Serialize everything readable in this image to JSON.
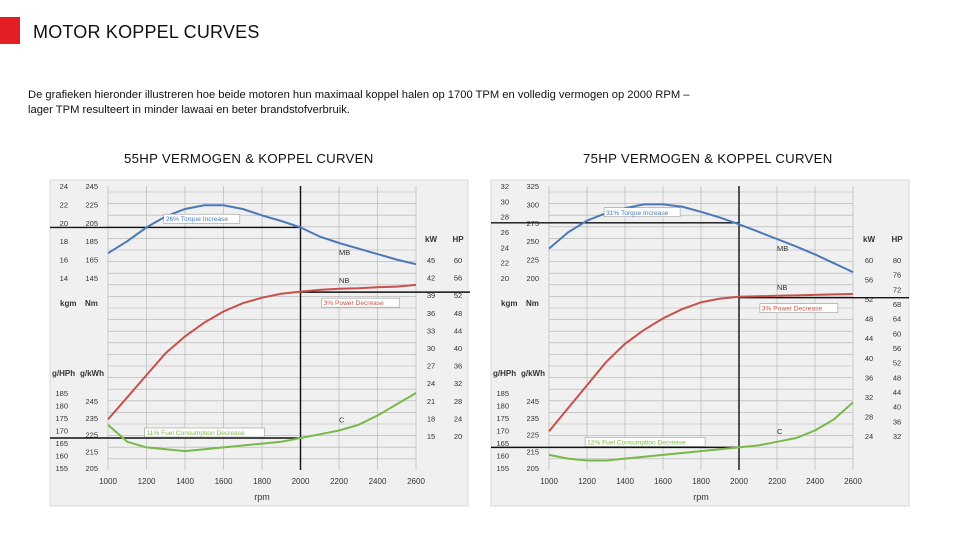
{
  "slide": {
    "title": "MOTOR KOPPEL CURVES",
    "intro_line1": "De grafieken hieronder illustreren hoe beide motoren hun maximaal koppel halen op 1700 TPM en volledig vermogen op 2000 RPM –",
    "intro_line2": "lager TPM resulteert in minder lawaai en beter brandstofverbruik.",
    "accent_color": "#e31e24"
  },
  "colors": {
    "torque": "#4a78b8",
    "power": "#c8504a",
    "fuel": "#7ab84a",
    "panel": "#f0f0f0",
    "grid": "#b0b0b0"
  },
  "chart_data": [
    {
      "type": "line",
      "title": "55HP VERMOGEN & KOPPEL CURVEN",
      "xlabel": "rpm",
      "x_ticks": [
        1000,
        1200,
        1400,
        1600,
        1800,
        2000,
        2200,
        2400,
        2600
      ],
      "xlim": [
        1000,
        2600
      ],
      "marker_rpm": 2000,
      "torque_axis": {
        "labels": [
          "kgm",
          "Nm"
        ],
        "kgm_ticks": [
          "24",
          "22",
          "20",
          "18",
          "16",
          "14"
        ],
        "nm_ticks": [
          "245",
          "225",
          "205",
          "185",
          "165",
          "145"
        ],
        "nm_range": [
          145,
          245
        ]
      },
      "power_axis": {
        "labels": [
          "kW",
          "HP"
        ],
        "kw_ticks": [
          "45",
          "42",
          "39",
          "36",
          "33",
          "30",
          "27",
          "24",
          "21",
          "18",
          "15"
        ],
        "hp_ticks": [
          "60",
          "56",
          "52",
          "48",
          "44",
          "40",
          "36",
          "32",
          "28",
          "24",
          "20"
        ],
        "kw_range": [
          15,
          45
        ]
      },
      "fuel_axis": {
        "labels": [
          "g/HPh",
          "g/kWh"
        ],
        "ghph_ticks": [
          "185",
          "180",
          "175",
          "170",
          "165",
          "160",
          "155"
        ],
        "gkwh_ticks": [
          "245",
          "235",
          "225",
          "215",
          "205"
        ],
        "gkwh_range": [
          205,
          245
        ]
      },
      "series": [
        {
          "name": "MB",
          "key": "torque",
          "x": [
            1000,
            1100,
            1200,
            1300,
            1400,
            1500,
            1600,
            1700,
            1800,
            1900,
            2000,
            2100,
            2200,
            2300,
            2400,
            2500,
            2600
          ],
          "values": [
            172,
            185,
            200,
            212,
            220,
            224,
            224,
            220,
            213,
            207,
            200,
            190,
            183,
            177,
            171,
            165,
            160
          ]
        },
        {
          "name": "NB",
          "key": "power",
          "x": [
            1000,
            1100,
            1200,
            1300,
            1400,
            1500,
            1600,
            1700,
            1800,
            1900,
            2000,
            2100,
            2200,
            2300,
            2400,
            2500,
            2600
          ],
          "values": [
            18,
            22,
            26,
            30,
            33,
            35.5,
            37.5,
            39,
            40,
            40.7,
            41.1,
            41.4,
            41.6,
            41.7,
            41.9,
            42,
            42.3
          ]
        },
        {
          "name": "C",
          "key": "fuel",
          "x": [
            1000,
            1100,
            1200,
            1300,
            1400,
            1500,
            1600,
            1700,
            1800,
            1900,
            2000,
            2100,
            2200,
            2300,
            2400,
            2500,
            2600
          ],
          "values": [
            228,
            219,
            216,
            215,
            214,
            215,
            216,
            217,
            218,
            219,
            221,
            223,
            225,
            228,
            233,
            239,
            245
          ]
        }
      ],
      "reference_lines": {
        "torque": 200,
        "power": 41,
        "fuel": 221
      },
      "annotations": [
        "26% Torque Increase",
        "3% Power Decrease",
        "11% Fuel Consumption Decrease"
      ]
    },
    {
      "type": "line",
      "title": "75HP VERMOGEN & KOPPEL CURVEN",
      "xlabel": "rpm",
      "x_ticks": [
        1000,
        1200,
        1400,
        1600,
        1800,
        2000,
        2200,
        2400,
        2600
      ],
      "xlim": [
        1000,
        2600
      ],
      "marker_rpm": 2000,
      "torque_axis": {
        "labels": [
          "kgm",
          "Nm"
        ],
        "kgm_ticks": [
          "32",
          "30",
          "28",
          "26",
          "24",
          "22",
          "20"
        ],
        "nm_ticks": [
          "325",
          "300",
          "275",
          "250",
          "225",
          "200"
        ],
        "nm_range": [
          200,
          325
        ]
      },
      "power_axis": {
        "labels": [
          "kW",
          "HP"
        ],
        "kw_ticks": [
          "60",
          "56",
          "52",
          "48",
          "44",
          "40",
          "36",
          "32",
          "28",
          "24"
        ],
        "hp_ticks": [
          "80",
          "76",
          "72",
          "68",
          "64",
          "60",
          "56",
          "52",
          "48",
          "44",
          "40",
          "36",
          "32"
        ],
        "kw_range": [
          24,
          60
        ]
      },
      "fuel_axis": {
        "labels": [
          "g/HPh",
          "g/kWh"
        ],
        "ghph_ticks": [
          "185",
          "180",
          "175",
          "170",
          "165",
          "160",
          "155"
        ],
        "gkwh_ticks": [
          "245",
          "235",
          "225",
          "215",
          "205"
        ],
        "gkwh_range": [
          205,
          245
        ]
      },
      "series": [
        {
          "name": "MB",
          "key": "torque",
          "x": [
            1000,
            1100,
            1200,
            1300,
            1400,
            1500,
            1600,
            1700,
            1800,
            1900,
            2000,
            2100,
            2200,
            2300,
            2400,
            2500,
            2600
          ],
          "values": [
            240,
            262,
            278,
            288,
            295,
            300,
            300,
            297,
            290,
            282,
            273,
            263,
            253,
            243,
            232,
            220,
            208
          ]
        },
        {
          "name": "NB",
          "key": "power",
          "x": [
            1000,
            1100,
            1200,
            1300,
            1400,
            1500,
            1600,
            1700,
            1800,
            1900,
            2000,
            2100,
            2200,
            2300,
            2400,
            2500,
            2600
          ],
          "values": [
            25,
            30,
            35,
            40,
            44,
            47,
            49.5,
            51.5,
            53,
            53.8,
            54.2,
            54.3,
            54.4,
            54.5,
            54.6,
            54.7,
            54.8
          ]
        },
        {
          "name": "C",
          "key": "fuel",
          "x": [
            1000,
            1100,
            1200,
            1300,
            1400,
            1500,
            1600,
            1700,
            1800,
            1900,
            2000,
            2100,
            2200,
            2300,
            2400,
            2500,
            2600
          ],
          "values": [
            212,
            210,
            209,
            209,
            210,
            211,
            212,
            213,
            214,
            215,
            216,
            217,
            219,
            221,
            225,
            231,
            240
          ]
        }
      ],
      "reference_lines": {
        "torque": 275,
        "power": 54,
        "fuel": 216
      },
      "annotations": [
        "31% Torque Increase",
        "3% Power Decrease",
        "12% Fuel Consumption Decrease"
      ]
    }
  ]
}
